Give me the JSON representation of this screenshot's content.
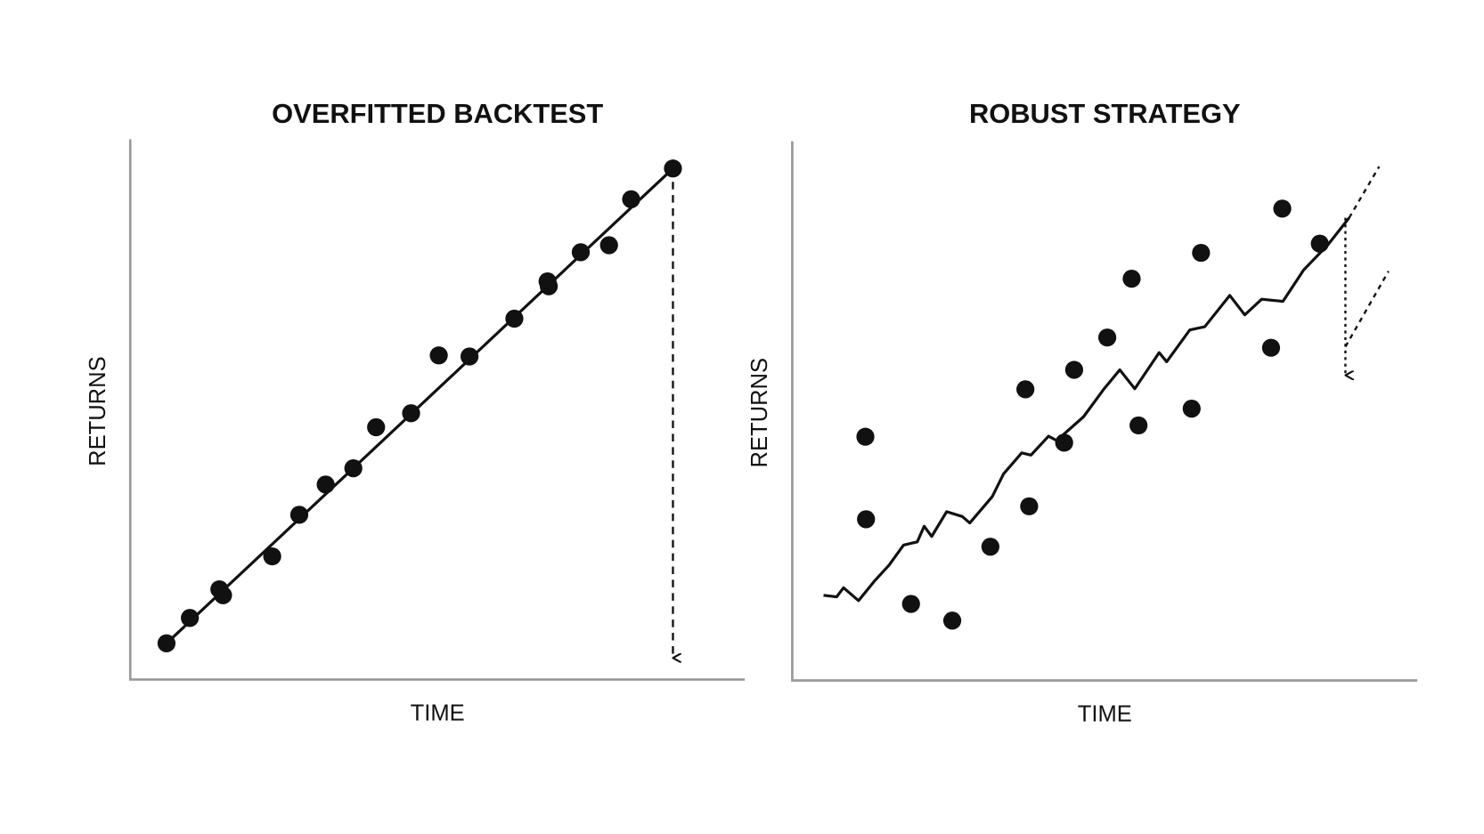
{
  "chart_data": [
    {
      "type": "scatter",
      "title": "OVERFITTED BACKTEST",
      "xlabel": "TIME",
      "ylabel": "RETURNS",
      "xlim": [
        0,
        100
      ],
      "ylim": [
        0,
        100
      ],
      "color": "#111111",
      "x": [
        5.9,
        9.7,
        14.5,
        15.1,
        23.1,
        27.5,
        31.8,
        36.3,
        40.0,
        45.7,
        50.2,
        55.2,
        62.5,
        67.9,
        68.1,
        73.3,
        77.9,
        81.5,
        88.3
      ],
      "y": [
        6.7,
        11.4,
        16.7,
        15.6,
        22.8,
        30.5,
        36.1,
        39.1,
        46.7,
        49.3,
        60.0,
        59.8,
        66.8,
        73.7,
        72.8,
        79.1,
        80.4,
        88.9,
        94.6
      ],
      "lines": [
        {
          "x": [
            5.9,
            88.3
          ],
          "y": [
            6.7,
            94.6
          ],
          "dash": "none",
          "arrow": false
        },
        {
          "x": [
            88.3,
            88.3
          ],
          "y": [
            94.6,
            4.0
          ],
          "dash": "8 6",
          "arrow": true
        }
      ]
    },
    {
      "type": "scatter",
      "title": "ROBUST STRATEGY",
      "xlabel": "TIME",
      "ylabel": "RETURNS",
      "xlim": [
        0,
        100
      ],
      "ylim": [
        0,
        100
      ],
      "color": "#111111",
      "x": [
        11.7,
        11.8,
        19.0,
        25.6,
        31.7,
        37.3,
        37.9,
        43.5,
        45.1,
        50.4,
        54.3,
        55.4,
        63.9,
        65.4,
        76.6,
        78.4,
        84.4
      ],
      "y": [
        45.2,
        29.9,
        14.2,
        11.1,
        24.8,
        54.0,
        32.3,
        44.1,
        57.6,
        63.6,
        74.5,
        47.3,
        50.4,
        79.3,
        61.7,
        87.5,
        81.0
      ],
      "lines": [
        {
          "x": [
            5.0,
            7.1,
            8.2,
            10.6,
            13.2,
            15.5,
            17.8,
            20.0,
            21.1,
            22.3,
            24.7,
            27.2,
            28.4,
            32.0,
            33.8,
            36.7,
            38.2,
            41.0,
            42.3,
            46.6,
            49.9,
            52.4,
            54.8,
            58.7,
            59.9,
            63.6,
            66.0,
            70.0,
            72.4,
            75.1,
            78.5,
            81.8,
            85.7,
            89.1
          ],
          "y": [
            15.8,
            15.5,
            17.2,
            14.8,
            18.5,
            21.4,
            25.1,
            25.7,
            28.6,
            26.7,
            31.3,
            30.4,
            29.2,
            34.1,
            38.3,
            42.2,
            41.8,
            45.3,
            44.5,
            48.9,
            54.1,
            57.6,
            54.1,
            60.8,
            59.1,
            65.0,
            65.6,
            71.4,
            67.8,
            70.7,
            70.3,
            76.1,
            80.8,
            85.8
          ],
          "dash": "none",
          "arrow": false
        },
        {
          "x": [
            89.1,
            93.9
          ],
          "y": [
            85.8,
            95.3
          ],
          "dash": "5 5",
          "arrow": false
        },
        {
          "x": [
            88.5,
            88.5
          ],
          "y": [
            85.8,
            56.6
          ],
          "dash": "3 4",
          "arrow": true
        },
        {
          "x": [
            88.5,
            95.4
          ],
          "y": [
            61.9,
            75.9
          ],
          "dash": "5 5",
          "arrow": false
        }
      ]
    }
  ]
}
